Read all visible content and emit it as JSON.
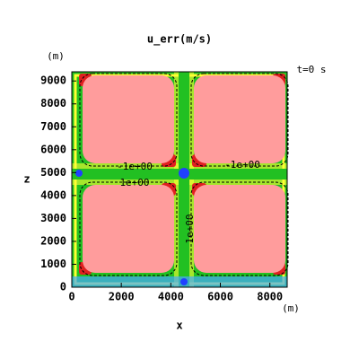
{
  "chart_data": {
    "type": "contour",
    "title": "u_err(m/s)",
    "x_label": "x",
    "y_label": "z",
    "x_unit": "(m)",
    "y_unit": "(m)",
    "time_label": "t=0 s",
    "xlim": [
      0,
      8700
    ],
    "ylim": [
      0,
      9400
    ],
    "xticks": [
      0,
      2000,
      4000,
      6000,
      8000
    ],
    "yticks": [
      0,
      1000,
      2000,
      3000,
      4000,
      5000,
      6000,
      7000,
      8000,
      9000
    ],
    "contour_labels": [
      "-1e+00",
      "1e+00",
      "-1e+00",
      "1e+00"
    ],
    "grid": false
  }
}
